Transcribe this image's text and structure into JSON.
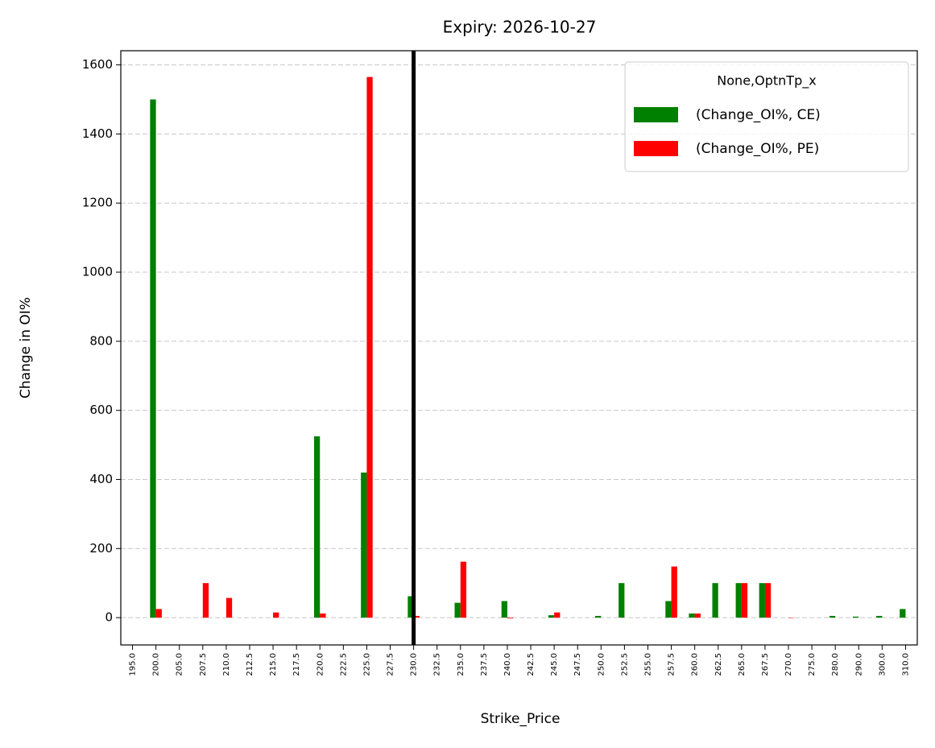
{
  "chart_data": {
    "type": "bar",
    "title": "Expiry: 2026-10-27",
    "xlabel": "Strike_Price",
    "ylabel": "Change in OI%",
    "categories": [
      "195.0",
      "200.0",
      "205.0",
      "207.5",
      "210.0",
      "212.5",
      "215.0",
      "217.5",
      "220.0",
      "222.5",
      "225.0",
      "227.5",
      "230.0",
      "232.5",
      "235.0",
      "237.5",
      "240.0",
      "242.5",
      "245.0",
      "247.5",
      "250.0",
      "252.5",
      "255.0",
      "257.5",
      "260.0",
      "262.5",
      "265.0",
      "267.5",
      "270.0",
      "275.0",
      "280.0",
      "290.0",
      "300.0",
      "310.0"
    ],
    "series": [
      {
        "name": "(Change_OI%, CE)",
        "color": "#008000",
        "values": [
          0,
          1500,
          0,
          0,
          0,
          0,
          0,
          0,
          525,
          0,
          420,
          0,
          62,
          0,
          43,
          0,
          48,
          0,
          7,
          0,
          5,
          100,
          0,
          48,
          12,
          100,
          100,
          100,
          0,
          0,
          5,
          3,
          5,
          25
        ]
      },
      {
        "name": "(Change_OI%, PE)",
        "color": "#ff0000",
        "values": [
          0,
          25,
          0,
          100,
          57,
          0,
          15,
          0,
          12,
          0,
          1565,
          0,
          5,
          0,
          162,
          0,
          -2,
          0,
          15,
          0,
          0,
          0,
          0,
          148,
          12,
          0,
          100,
          100,
          -1,
          0,
          0,
          0,
          0,
          0
        ]
      }
    ],
    "legend_title": "None,OptnTp_x",
    "legend": "upper right",
    "vline": "230.0",
    "vline_color": "#000000",
    "ylim": [
      -79,
      1641
    ],
    "yticks": [
      0,
      200,
      400,
      600,
      800,
      1000,
      1200,
      1400,
      1600
    ],
    "grid": true
  }
}
